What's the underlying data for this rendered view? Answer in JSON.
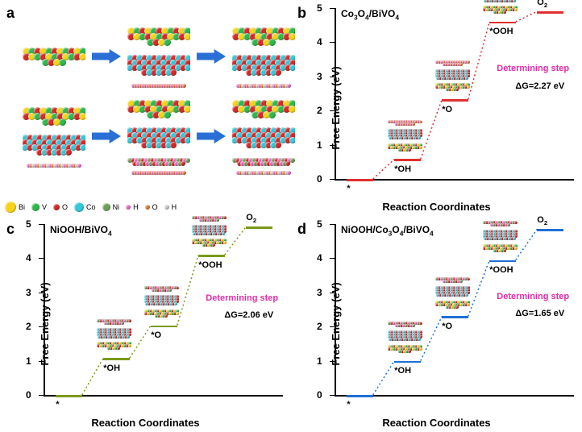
{
  "panels": {
    "a": {
      "label": "a"
    },
    "b": {
      "label": "b",
      "title_html": "Co<sub>3</sub>O<sub>4</sub>/BiVO<sub>4</sub>"
    },
    "c": {
      "label": "c",
      "title_html": "NiOOH/BiVO<sub>4</sub>"
    },
    "d": {
      "label": "d",
      "title_html": "NiOOH/Co<sub>3</sub>O<sub>4</sub>/BiVO<sub>4</sub>"
    }
  },
  "colors": {
    "Bi": "#f6d31a",
    "V": "#2fb84d",
    "O": "#d42a2a",
    "Co": "#36c7d8",
    "Ni": "#6fa05a",
    "H": "#e668c4",
    "O2": "#e07b2e",
    "H2": "#c8c8c8",
    "arrow": "#2a6fd6",
    "det_step": "#e02da8",
    "line_b": "#e03030",
    "line_c": "#7a9a1a",
    "line_d": "#1f6fd6",
    "bg": "#ffffff",
    "text": "#000000"
  },
  "legend": [
    {
      "label": "Bi",
      "color_key": "Bi",
      "size": 14
    },
    {
      "label": "V",
      "color_key": "V",
      "size": 10
    },
    {
      "label": "O",
      "color_key": "O",
      "size": 8
    },
    {
      "label": "Co",
      "color_key": "Co",
      "size": 12
    },
    {
      "label": "Ni",
      "color_key": "Ni",
      "size": 10
    },
    {
      "label": "H",
      "color_key": "H",
      "size": 6
    },
    {
      "label": "O",
      "color_key": "O2",
      "size": 6
    },
    {
      "label": "H",
      "color_key": "H2",
      "size": 6
    }
  ],
  "schematic": {
    "rows": [
      {
        "y": 26,
        "items": [
          {
            "stack": [
              "bivo4"
            ]
          },
          {
            "arrow": true
          },
          {
            "stack": [
              "bivo4",
              "co3o4",
              "Htop"
            ]
          },
          {
            "arrow": true
          },
          {
            "stack": [
              "bivo4",
              "co3o4",
              "Htop2"
            ]
          }
        ]
      },
      {
        "y": 116,
        "items": [
          {
            "stack": [
              "bivo4",
              "co3o4",
              "Htop2"
            ]
          },
          {
            "arrow": true
          },
          {
            "stack": [
              "bivo4",
              "co3o4",
              "niooh",
              "Htop"
            ]
          },
          {
            "arrow": true
          },
          {
            "stack": [
              "bivo4",
              "co3o4",
              "niooh",
              "Htop2"
            ]
          }
        ]
      }
    ],
    "slab_defs": {
      "bivo4": {
        "colors": [
          "Bi",
          "V",
          "O"
        ],
        "w": 78,
        "h": 30,
        "atom_size": 9
      },
      "co3o4": {
        "colors": [
          "Co",
          "O"
        ],
        "w": 78,
        "h": 42,
        "atom_size": 8
      },
      "niooh": {
        "colors": [
          "Ni",
          "O",
          "H"
        ],
        "w": 78,
        "h": 18,
        "atom_size": 6
      },
      "Htop": {
        "colors": [
          "H",
          "O2"
        ],
        "w": 78,
        "h": 8,
        "atom_size": 5
      },
      "Htop2": {
        "colors": [
          "H",
          "O2",
          "H2"
        ],
        "w": 78,
        "h": 8,
        "atom_size": 5
      }
    }
  },
  "axes": {
    "ylabel": "Free Energy (eV)",
    "xlabel": "Reaction Coordinates",
    "ylim": [
      0,
      5
    ],
    "yticks": [
      0,
      1,
      2,
      3,
      4,
      5
    ],
    "det_step_text": "Determining step",
    "step_labels": [
      "*",
      "*OH",
      "*O",
      "*OOH",
      "O₂"
    ]
  },
  "charts": {
    "b": {
      "color_key": "line_b",
      "dg_text": "ΔG=2.27 eV",
      "steps": [
        0.0,
        0.58,
        2.33,
        4.6,
        4.9
      ],
      "mini_structs": {
        "top": "Htop",
        "mid": "co3o4",
        "bot": "bivo4"
      }
    },
    "c": {
      "color_key": "line_c",
      "dg_text": "ΔG=2.06 eV",
      "steps": [
        0.0,
        1.08,
        2.04,
        4.1,
        4.92
      ],
      "mini_structs": {
        "top": "niooh",
        "mid": "co3o4",
        "bot": "bivo4"
      }
    },
    "d": {
      "color_key": "line_d",
      "dg_text": "ΔG=1.65 eV",
      "steps": [
        0.0,
        1.0,
        2.3,
        3.95,
        4.85
      ],
      "mini_structs": {
        "top": "niooh",
        "mid": "co3o4",
        "bot": "bivo4"
      }
    }
  },
  "fonts": {
    "panel_label": 18,
    "axis_label": 13,
    "tick": 12,
    "step": 11,
    "legend": 9
  }
}
